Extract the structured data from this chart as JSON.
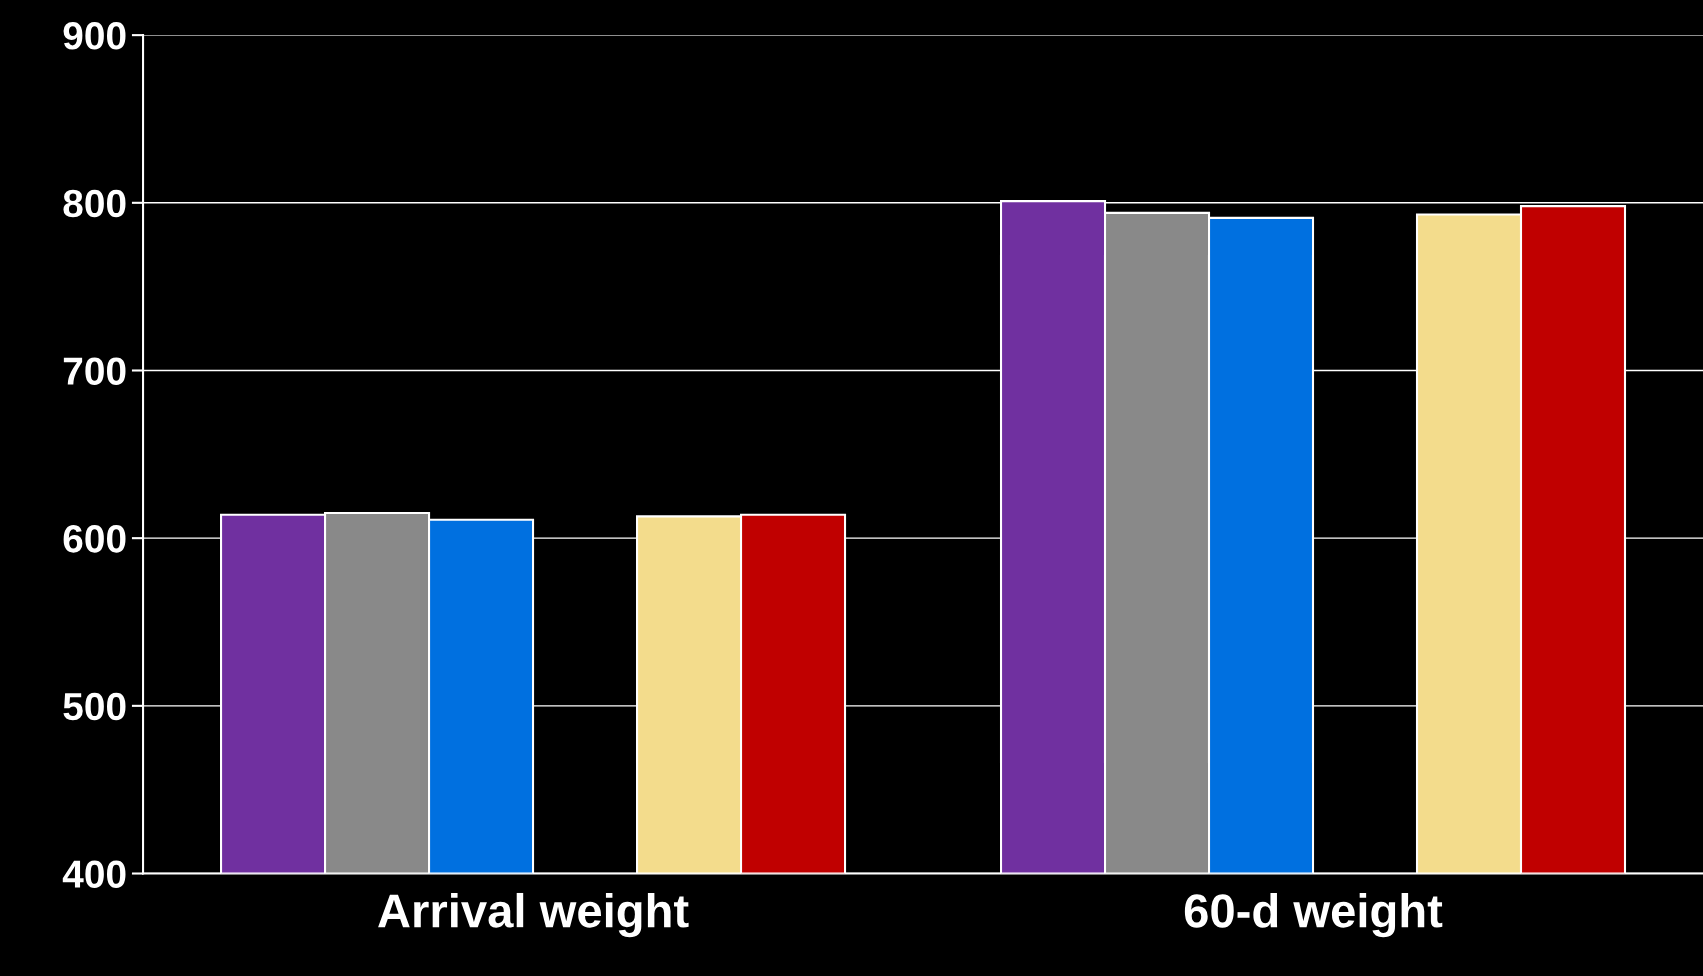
{
  "chart_data": {
    "type": "bar",
    "categories": [
      "Arrival weight",
      "60-d weight"
    ],
    "series": [
      {
        "color": "#7030a0",
        "values": [
          614,
          801
        ]
      },
      {
        "color": "#898989",
        "values": [
          615,
          794
        ]
      },
      {
        "color": "#0070e0",
        "values": [
          611,
          791
        ]
      },
      {
        "values": [
          null,
          null
        ]
      },
      {
        "color": "#f3dc8c",
        "values": [
          613,
          793
        ]
      },
      {
        "color": "#c00000",
        "values": [
          614,
          798
        ]
      }
    ],
    "ylim": [
      400,
      900
    ],
    "yticks": [
      400,
      500,
      600,
      700,
      800,
      900
    ],
    "grid": "y",
    "legend": false
  }
}
